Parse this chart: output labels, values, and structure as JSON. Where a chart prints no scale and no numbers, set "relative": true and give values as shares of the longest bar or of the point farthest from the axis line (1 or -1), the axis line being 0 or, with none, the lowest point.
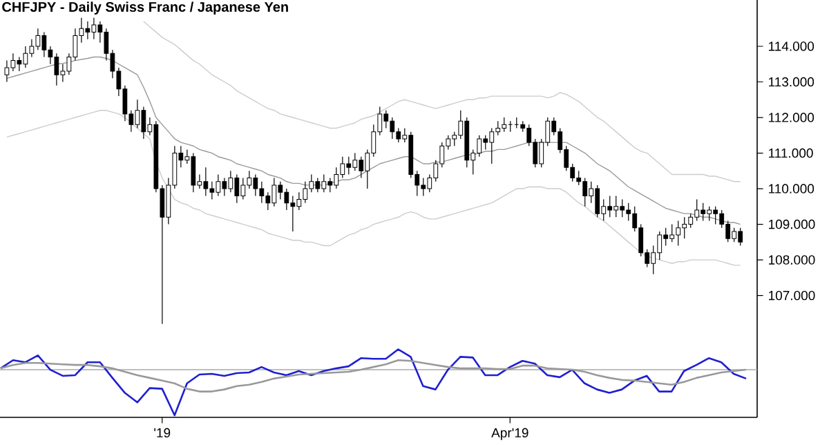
{
  "chart_data": [
    {
      "type": "candlestick",
      "title": "CHFJPY - Daily  Swiss Franc / Japanese Yen",
      "tick_labels": "y",
      "categories": [
        null,
        null,
        null,
        null,
        null,
        null,
        null,
        null,
        null,
        null,
        null,
        null,
        null,
        null,
        null,
        null,
        null,
        null,
        null,
        null,
        null,
        null,
        null,
        null,
        null,
        null,
        null,
        null,
        null,
        null,
        null,
        null,
        null,
        null,
        null,
        null,
        null,
        null,
        null,
        null,
        null,
        null,
        null,
        null,
        null,
        null,
        null,
        null,
        null,
        null,
        null,
        null,
        null,
        null,
        null,
        null,
        null,
        null,
        null,
        null,
        null,
        null,
        null,
        null,
        null,
        null,
        null,
        null,
        null,
        null,
        null,
        null,
        null,
        null,
        null,
        null,
        null,
        null,
        null,
        null,
        null,
        null,
        null,
        null,
        null,
        null,
        null,
        null,
        null,
        null,
        null,
        null,
        null,
        null,
        null,
        null,
        null,
        null,
        null,
        null,
        null,
        null,
        null,
        null,
        null,
        null,
        null,
        null,
        null,
        null,
        null,
        null,
        null,
        null,
        null,
        null,
        null,
        null,
        null
      ],
      "ohlc": [
        [
          113.2,
          113.6,
          113.0,
          113.4
        ],
        [
          113.4,
          113.8,
          113.3,
          113.6
        ],
        [
          113.6,
          113.7,
          113.3,
          113.5
        ],
        [
          113.5,
          114.0,
          113.4,
          113.8
        ],
        [
          113.8,
          114.2,
          113.7,
          114.0
        ],
        [
          114.0,
          114.5,
          113.9,
          114.3
        ],
        [
          114.3,
          114.4,
          113.7,
          113.9
        ],
        [
          113.9,
          114.0,
          113.5,
          113.7
        ],
        [
          113.7,
          113.8,
          112.9,
          113.2
        ],
        [
          113.2,
          113.5,
          113.0,
          113.3
        ],
        [
          113.3,
          113.8,
          113.2,
          113.7
        ],
        [
          113.7,
          114.5,
          113.6,
          114.3
        ],
        [
          114.3,
          114.8,
          114.1,
          114.5
        ],
        [
          114.5,
          114.7,
          114.2,
          114.4
        ],
        [
          114.4,
          114.8,
          114.2,
          114.6
        ],
        [
          114.6,
          114.7,
          114.1,
          114.4
        ],
        [
          114.4,
          114.5,
          113.6,
          113.8
        ],
        [
          113.8,
          113.9,
          113.1,
          113.3
        ],
        [
          113.3,
          113.4,
          112.6,
          112.8
        ],
        [
          112.8,
          112.9,
          111.9,
          112.1
        ],
        [
          112.1,
          112.2,
          111.6,
          111.8
        ],
        [
          111.8,
          112.5,
          111.7,
          112.2
        ],
        [
          112.2,
          112.3,
          111.4,
          111.6
        ],
        [
          111.6,
          112.0,
          111.5,
          111.8
        ],
        [
          111.8,
          111.9,
          109.9,
          110.0
        ],
        [
          110.0,
          110.1,
          106.2,
          109.2
        ],
        [
          109.2,
          110.3,
          109.0,
          110.1
        ],
        [
          110.1,
          111.2,
          110.0,
          111.0
        ],
        [
          111.0,
          111.2,
          110.6,
          110.8
        ],
        [
          110.8,
          111.1,
          110.7,
          110.9
        ],
        [
          110.9,
          111.0,
          109.9,
          110.1
        ],
        [
          110.1,
          110.4,
          110.0,
          110.2
        ],
        [
          110.2,
          110.6,
          109.8,
          110.0
        ],
        [
          110.0,
          110.2,
          109.7,
          109.9
        ],
        [
          109.9,
          110.4,
          109.8,
          110.2
        ],
        [
          110.2,
          110.3,
          109.8,
          110.0
        ],
        [
          110.0,
          110.5,
          109.9,
          110.3
        ],
        [
          110.3,
          110.4,
          109.6,
          109.8
        ],
        [
          109.8,
          110.3,
          109.7,
          110.1
        ],
        [
          110.1,
          110.5,
          110.0,
          110.3
        ],
        [
          110.3,
          110.4,
          109.8,
          110.0
        ],
        [
          110.0,
          110.2,
          109.6,
          109.8
        ],
        [
          109.8,
          109.9,
          109.4,
          109.6
        ],
        [
          109.6,
          110.3,
          109.5,
          110.1
        ],
        [
          110.1,
          110.2,
          109.7,
          109.9
        ],
        [
          109.9,
          110.0,
          109.4,
          109.6
        ],
        [
          109.6,
          109.8,
          108.8,
          109.5
        ],
        [
          109.5,
          109.9,
          109.4,
          109.7
        ],
        [
          109.7,
          110.2,
          109.6,
          110.0
        ],
        [
          110.0,
          110.4,
          109.9,
          110.2
        ],
        [
          110.2,
          110.3,
          109.9,
          110.0
        ],
        [
          110.0,
          110.4,
          109.9,
          110.2
        ],
        [
          110.2,
          110.3,
          109.9,
          110.1
        ],
        [
          110.1,
          110.6,
          110.0,
          110.4
        ],
        [
          110.4,
          110.9,
          110.3,
          110.7
        ],
        [
          110.7,
          110.9,
          110.4,
          110.6
        ],
        [
          110.6,
          111.0,
          110.5,
          110.8
        ],
        [
          110.8,
          110.9,
          110.3,
          110.5
        ],
        [
          110.5,
          111.1,
          110.0,
          111.0
        ],
        [
          111.0,
          111.8,
          110.9,
          111.6
        ],
        [
          111.6,
          112.3,
          111.5,
          112.1
        ],
        [
          112.1,
          112.2,
          111.7,
          111.9
        ],
        [
          111.9,
          112.0,
          111.4,
          111.6
        ],
        [
          111.6,
          111.7,
          111.3,
          111.4
        ],
        [
          111.4,
          111.7,
          111.3,
          111.5
        ],
        [
          111.5,
          111.6,
          110.3,
          110.4
        ],
        [
          110.4,
          110.5,
          109.8,
          110.1
        ],
        [
          110.1,
          110.3,
          109.8,
          110.0
        ],
        [
          110.0,
          110.4,
          109.9,
          110.3
        ],
        [
          110.3,
          110.8,
          110.2,
          110.7
        ],
        [
          110.7,
          111.3,
          110.6,
          111.2
        ],
        [
          111.2,
          111.5,
          111.1,
          111.4
        ],
        [
          111.4,
          111.6,
          111.2,
          111.5
        ],
        [
          111.5,
          112.2,
          111.4,
          111.9
        ],
        [
          111.9,
          112.0,
          110.6,
          110.8
        ],
        [
          110.8,
          111.1,
          110.4,
          111.0
        ],
        [
          111.0,
          111.5,
          110.9,
          111.4
        ],
        [
          111.4,
          111.5,
          111.1,
          111.3
        ],
        [
          111.3,
          111.7,
          110.7,
          111.6
        ],
        [
          111.6,
          111.9,
          111.5,
          111.7
        ],
        [
          111.7,
          112.0,
          111.6,
          111.8
        ],
        [
          111.8,
          111.9,
          111.6,
          111.8
        ],
        [
          111.8,
          112.0,
          111.7,
          111.8
        ],
        [
          111.8,
          111.9,
          111.6,
          111.7
        ],
        [
          111.7,
          111.8,
          111.2,
          111.3
        ],
        [
          111.3,
          111.4,
          110.6,
          110.7
        ],
        [
          110.7,
          111.4,
          110.6,
          111.3
        ],
        [
          111.3,
          112.0,
          111.2,
          111.9
        ],
        [
          111.9,
          112.0,
          111.5,
          111.6
        ],
        [
          111.6,
          111.7,
          111.0,
          111.1
        ],
        [
          111.1,
          111.2,
          110.5,
          110.6
        ],
        [
          110.6,
          110.7,
          110.2,
          110.3
        ],
        [
          110.3,
          110.5,
          110.1,
          110.2
        ],
        [
          110.2,
          110.3,
          109.5,
          109.8
        ],
        [
          109.8,
          110.2,
          109.6,
          110.0
        ],
        [
          110.0,
          110.1,
          109.2,
          109.3
        ],
        [
          109.3,
          109.7,
          109.1,
          109.5
        ],
        [
          109.5,
          109.8,
          109.2,
          109.4
        ],
        [
          109.4,
          109.8,
          109.2,
          109.5
        ],
        [
          109.5,
          109.7,
          109.2,
          109.4
        ],
        [
          109.4,
          109.6,
          109.1,
          109.3
        ],
        [
          109.3,
          109.5,
          108.8,
          108.9
        ],
        [
          108.9,
          109.0,
          108.1,
          108.2
        ],
        [
          108.2,
          108.3,
          107.8,
          107.9
        ],
        [
          107.9,
          108.4,
          107.6,
          108.2
        ],
        [
          108.2,
          108.8,
          108.0,
          108.7
        ],
        [
          108.7,
          108.9,
          108.4,
          108.6
        ],
        [
          108.6,
          109.0,
          108.5,
          108.7
        ],
        [
          108.7,
          109.1,
          108.4,
          108.9
        ],
        [
          108.9,
          109.2,
          108.6,
          109.0
        ],
        [
          109.0,
          109.3,
          108.9,
          109.2
        ],
        [
          109.2,
          109.7,
          109.1,
          109.4
        ],
        [
          109.4,
          109.6,
          109.1,
          109.3
        ],
        [
          109.3,
          109.5,
          109.1,
          109.4
        ],
        [
          109.4,
          109.5,
          109.0,
          109.3
        ],
        [
          109.3,
          109.4,
          108.9,
          109.0
        ],
        [
          109.0,
          109.1,
          108.5,
          108.6
        ],
        [
          108.6,
          108.9,
          108.5,
          108.8
        ],
        [
          108.8,
          108.9,
          108.4,
          108.5
        ]
      ],
      "series": [
        {
          "type": "line",
          "color": "#999999",
          "values": [
            113.1,
            113.15,
            113.2,
            113.25,
            113.3,
            113.35,
            113.4,
            113.45,
            113.5,
            113.52,
            113.55,
            113.6,
            113.63,
            113.66,
            113.7,
            113.7,
            113.66,
            113.6,
            113.5,
            113.4,
            113.3,
            113.2,
            112.85,
            112.45,
            112.0,
            111.8,
            111.6,
            111.4,
            111.3,
            111.25,
            111.2,
            111.1,
            111.05,
            111.0,
            110.9,
            110.85,
            110.8,
            110.7,
            110.65,
            110.6,
            110.55,
            110.5,
            110.4,
            110.35,
            110.3,
            110.2,
            110.15,
            110.15,
            110.1,
            110.1,
            110.1,
            110.1,
            110.15,
            110.2,
            110.25,
            110.25,
            110.3,
            110.4,
            110.5,
            110.6,
            110.7,
            110.75,
            110.8,
            110.85,
            110.9,
            110.9,
            110.8,
            110.7,
            110.7,
            110.75,
            110.75,
            110.8,
            110.85,
            110.9,
            110.95,
            110.95,
            111.0,
            111.05,
            111.05,
            111.1,
            111.1,
            111.15,
            111.2,
            111.25,
            111.3,
            111.3,
            111.3,
            111.3,
            111.3,
            111.3,
            111.3,
            111.2,
            111.1,
            111.0,
            110.85,
            110.7,
            110.6,
            110.5,
            110.35,
            110.2,
            110.05,
            109.95,
            109.85,
            109.75,
            109.65,
            109.55,
            109.45,
            109.4,
            109.35,
            109.3,
            109.3,
            109.25,
            109.2,
            109.2,
            109.15,
            109.1,
            109.05,
            109.05,
            109.0
          ]
        },
        {
          "type": "line",
          "color": "#cccccc",
          "values": [
            null,
            null,
            null,
            null,
            null,
            null,
            null,
            null,
            null,
            null,
            null,
            null,
            null,
            null,
            null,
            null,
            null,
            null,
            null,
            null,
            null,
            null,
            114.7,
            114.55,
            114.4,
            114.25,
            114.15,
            114.05,
            113.9,
            113.75,
            113.6,
            113.5,
            113.35,
            113.2,
            113.1,
            113.0,
            112.9,
            112.75,
            112.65,
            112.55,
            112.45,
            112.35,
            112.25,
            112.2,
            112.1,
            112.05,
            112.0,
            111.95,
            111.9,
            111.85,
            111.8,
            111.75,
            111.7,
            111.7,
            111.75,
            111.8,
            111.85,
            111.95,
            112.0,
            112.05,
            112.15,
            112.25,
            112.35,
            112.45,
            112.5,
            112.45,
            112.4,
            112.35,
            112.3,
            112.25,
            112.3,
            112.35,
            112.4,
            112.45,
            112.5,
            112.5,
            112.55,
            112.55,
            112.6,
            112.6,
            112.6,
            112.6,
            112.6,
            112.6,
            112.6,
            112.6,
            112.6,
            112.55,
            112.6,
            112.7,
            112.65,
            112.55,
            112.45,
            112.3,
            112.15,
            112.0,
            111.9,
            111.75,
            111.6,
            111.45,
            111.3,
            111.15,
            111.05,
            111.0,
            110.85,
            110.7,
            110.55,
            110.4,
            110.4,
            110.4,
            110.4,
            110.4,
            110.4,
            110.35,
            110.35,
            110.3,
            110.25,
            110.2,
            110.2
          ]
        },
        {
          "type": "line",
          "color": "#cccccc",
          "values": [
            111.45,
            111.5,
            111.55,
            111.6,
            111.65,
            111.7,
            111.75,
            111.8,
            111.85,
            111.9,
            111.95,
            112.0,
            112.05,
            112.1,
            112.15,
            112.2,
            112.2,
            112.15,
            112.1,
            112.0,
            111.85,
            111.7,
            111.55,
            111.4,
            110.75,
            110.3,
            110.0,
            109.7,
            109.6,
            109.55,
            109.45,
            109.4,
            109.3,
            109.25,
            109.2,
            109.15,
            109.1,
            109.05,
            109.0,
            108.95,
            108.9,
            108.85,
            108.75,
            108.7,
            108.65,
            108.6,
            108.55,
            108.55,
            108.5,
            108.5,
            108.45,
            108.4,
            108.4,
            108.5,
            108.6,
            108.7,
            108.75,
            108.85,
            108.9,
            109.0,
            109.05,
            109.1,
            109.15,
            109.2,
            109.3,
            109.35,
            109.3,
            109.2,
            109.15,
            109.15,
            109.2,
            109.25,
            109.3,
            109.35,
            109.4,
            109.45,
            109.5,
            109.55,
            109.6,
            109.7,
            109.8,
            109.9,
            110.0,
            110.0,
            110.05,
            110.05,
            110.05,
            110.0,
            110.0,
            110.0,
            109.9,
            109.75,
            109.6,
            109.5,
            109.35,
            109.2,
            109.1,
            108.95,
            108.8,
            108.65,
            108.5,
            108.35,
            108.2,
            108.1,
            108.05,
            108.0,
            107.95,
            107.9,
            107.95,
            107.95,
            108.0,
            108.0,
            108.0,
            108.0,
            108.0,
            107.95,
            107.9,
            107.85,
            107.85
          ]
        }
      ],
      "ylim": [
        106.1,
        115.3
      ],
      "yticks": [
        {
          "value": 107,
          "label": "107.000"
        },
        {
          "value": 108,
          "label": "108.000"
        },
        {
          "value": 109,
          "label": "109.000"
        },
        {
          "value": 110,
          "label": "110.000"
        },
        {
          "value": 111,
          "label": "111.000"
        },
        {
          "value": 112,
          "label": "112.000"
        },
        {
          "value": 113,
          "label": "113.000"
        },
        {
          "value": 114,
          "label": "114.000"
        }
      ]
    },
    {
      "type": "line",
      "relative": true,
      "tick_labels": "x",
      "categories": [
        null,
        null,
        null,
        null,
        null,
        null,
        null,
        null,
        null,
        null,
        null,
        null,
        null,
        "'19",
        null,
        null,
        null,
        null,
        null,
        null,
        null,
        null,
        null,
        null,
        null,
        null,
        null,
        null,
        null,
        null,
        null,
        null,
        null,
        null,
        null,
        null,
        null,
        null,
        null,
        null,
        null,
        "Apr'19",
        null,
        null,
        null,
        null,
        null,
        null,
        null,
        null,
        null,
        null,
        null,
        null,
        null,
        null,
        null,
        null,
        null,
        null,
        null
      ],
      "series": [
        {
          "color": "#1f1fd1",
          "values": [
            0.72,
            0.84,
            0.81,
            0.91,
            0.7,
            0.61,
            0.62,
            0.81,
            0.81,
            0.58,
            0.36,
            0.22,
            0.43,
            0.42,
            0.03,
            0.5,
            0.63,
            0.64,
            0.61,
            0.65,
            0.66,
            0.74,
            0.66,
            0.62,
            0.68,
            0.62,
            0.68,
            0.72,
            0.75,
            0.87,
            0.86,
            0.86,
            1.0,
            0.89,
            0.46,
            0.41,
            0.7,
            0.89,
            0.88,
            0.62,
            0.62,
            0.74,
            0.83,
            0.79,
            0.62,
            0.59,
            0.7,
            0.5,
            0.41,
            0.36,
            0.41,
            0.54,
            0.61,
            0.38,
            0.38,
            0.68,
            0.77,
            0.87,
            0.81,
            0.64,
            0.57
          ]
        },
        {
          "color": "#999999",
          "values": [
            0.72,
            0.77,
            0.8,
            0.8,
            0.79,
            0.78,
            0.77,
            0.77,
            0.75,
            0.72,
            0.67,
            0.62,
            0.58,
            0.54,
            0.5,
            0.42,
            0.38,
            0.38,
            0.41,
            0.46,
            0.48,
            0.52,
            0.57,
            0.6,
            0.63,
            0.64,
            0.65,
            0.66,
            0.67,
            0.7,
            0.74,
            0.78,
            0.84,
            0.83,
            0.8,
            0.77,
            0.74,
            0.72,
            0.72,
            0.72,
            0.71,
            0.71,
            0.76,
            0.76,
            0.72,
            0.71,
            0.7,
            0.67,
            0.62,
            0.58,
            0.55,
            0.54,
            0.52,
            0.5,
            0.48,
            0.52,
            0.58,
            0.62,
            0.66,
            0.68,
            0.7
          ]
        }
      ],
      "ref_lines": [
        {
          "axis": "y",
          "value": 0.7,
          "color": "#aaaaaa"
        }
      ]
    }
  ]
}
